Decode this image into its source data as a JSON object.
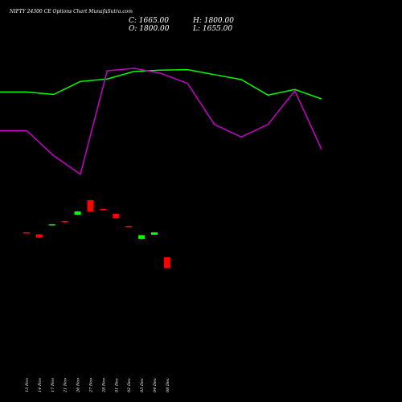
{
  "chart_data": {
    "type": "candlestick",
    "title": "NIFTY 24300  CE Options  Chart MunafaSutra.com",
    "ohlc": {
      "close_label": "C: 1665.00",
      "high_label": "H: 1800.00",
      "open_label": "O: 1800.00",
      "low_label": "L: 1655.00"
    },
    "categories": [
      "13 Nov",
      "14 Nov",
      "17 Nov",
      "21 Nov",
      "26 Nov",
      "27 Nov",
      "28 Nov",
      "01 Dec",
      "02 Dec",
      "03 Dec",
      "04 Dec",
      "08 Dec"
    ],
    "candles": [
      {
        "open": 2110,
        "close": 2100,
        "high": 2115,
        "low": 2095
      },
      {
        "open": 2085,
        "close": 2045,
        "high": 2090,
        "low": 2040
      },
      {
        "open": 2200,
        "close": 2210,
        "high": 2215,
        "low": 2195
      },
      {
        "open": 2250,
        "close": 2235,
        "high": 2255,
        "low": 2230
      },
      {
        "open": 2330,
        "close": 2370,
        "high": 2375,
        "low": 2325
      },
      {
        "open": 2510,
        "close": 2370,
        "high": 2515,
        "low": 2365
      },
      {
        "open": 2400,
        "close": 2385,
        "high": 2405,
        "low": 2380
      },
      {
        "open": 2340,
        "close": 2290,
        "high": 2345,
        "low": 2285
      },
      {
        "open": 2190,
        "close": 2180,
        "high": 2195,
        "low": 2175
      },
      {
        "open": 2030,
        "close": 2075,
        "high": 2080,
        "low": 2025
      },
      {
        "open": 2080,
        "close": 2110,
        "high": 2115,
        "low": 2075
      },
      {
        "open": 1800,
        "close": 1665,
        "high": 1800,
        "low": 1655
      }
    ],
    "indicator_lines": [
      {
        "color": "#00ff00",
        "values": [
          0.81,
          0.81,
          0.79,
          0.895,
          0.915,
          0.975,
          0.985,
          0.99,
          0.95,
          0.91,
          0.785,
          0.83,
          0.755
        ]
      },
      {
        "color": "#cc00cc",
        "values": [
          0.5,
          0.5,
          0.3,
          0.15,
          0.98,
          1.0,
          0.96,
          0.88,
          0.55,
          0.45,
          0.55,
          0.82,
          0.35
        ]
      }
    ],
    "colors": {
      "background": "#000000",
      "up_candle": "#00ff00",
      "down_candle": "#ff0000",
      "text": "#ffffff"
    },
    "grid": false,
    "legend": "none"
  }
}
